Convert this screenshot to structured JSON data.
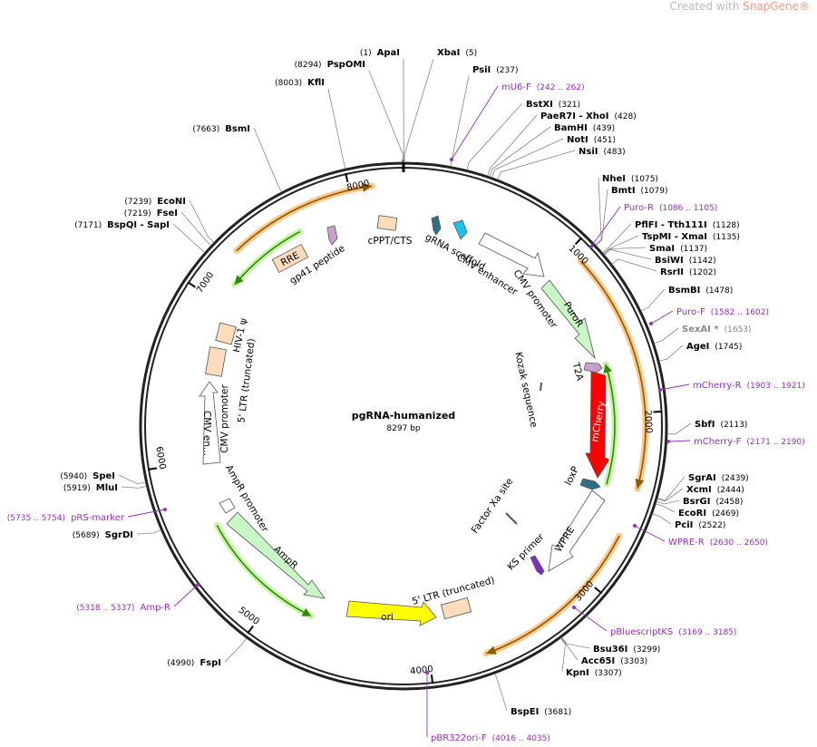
{
  "watermark": {
    "prefix": "Created with ",
    "brand": "SnapGene®"
  },
  "map": {
    "name": "pgRNA-humanized",
    "length": {
      "value": 8297,
      "label": "8297 bp"
    }
  },
  "ticks": [
    1000,
    2000,
    3000,
    4000,
    5000,
    6000,
    7000,
    8000
  ],
  "enzymes": [
    {
      "name": "ApaI",
      "position": {
        "value": 1,
        "label": "(1)"
      }
    },
    {
      "name": "XbaI",
      "position": {
        "value": 5,
        "label": "(5)"
      }
    },
    {
      "name": "PspOMI",
      "position": {
        "value": 8294,
        "label": "(8294)"
      }
    },
    {
      "name": "PsiI",
      "position": {
        "value": 237,
        "label": "(237)"
      }
    },
    {
      "name": "KflI",
      "position": {
        "value": 8003,
        "label": "(8003)"
      }
    },
    {
      "name": "BstXI",
      "position": {
        "value": 321,
        "label": "(321)"
      }
    },
    {
      "name": "PaeR7I - XhoI",
      "position": {
        "value": 428,
        "label": "(428)"
      }
    },
    {
      "name": "BamHI",
      "position": {
        "value": 439,
        "label": "(439)"
      }
    },
    {
      "name": "NotI",
      "position": {
        "value": 451,
        "label": "(451)"
      }
    },
    {
      "name": "NsiI",
      "position": {
        "value": 483,
        "label": "(483)"
      }
    },
    {
      "name": "BsmI",
      "position": {
        "value": 7663,
        "label": "(7663)"
      }
    },
    {
      "name": "NheI",
      "position": {
        "value": 1075,
        "label": "(1075)"
      }
    },
    {
      "name": "BmtI",
      "position": {
        "value": 1079,
        "label": "(1079)"
      }
    },
    {
      "name": "EcoNI",
      "position": {
        "value": 7239,
        "label": "(7239)"
      }
    },
    {
      "name": "FseI",
      "position": {
        "value": 7219,
        "label": "(7219)"
      }
    },
    {
      "name": "BspQI - SapI",
      "position": {
        "value": 7171,
        "label": "(7171)"
      }
    },
    {
      "name": "PflFI - Tth111I",
      "position": {
        "value": 1128,
        "label": "(1128)"
      }
    },
    {
      "name": "TspMI - XmaI",
      "position": {
        "value": 1135,
        "label": "(1135)"
      }
    },
    {
      "name": "SmaI",
      "position": {
        "value": 1137,
        "label": "(1137)"
      }
    },
    {
      "name": "BsiWI",
      "position": {
        "value": 1142,
        "label": "(1142)"
      }
    },
    {
      "name": "RsrII",
      "position": {
        "value": 1202,
        "label": "(1202)"
      }
    },
    {
      "name": "BsmBI",
      "position": {
        "value": 1478,
        "label": "(1478)"
      }
    },
    {
      "name": "SexAI *",
      "position": {
        "value": 1653,
        "label": "(1653)"
      }
    },
    {
      "name": "AgeI",
      "position": {
        "value": 1745,
        "label": "(1745)"
      }
    },
    {
      "name": "SbfI",
      "position": {
        "value": 2113,
        "label": "(2113)"
      }
    },
    {
      "name": "SgrAI",
      "position": {
        "value": 2439,
        "label": "(2439)"
      }
    },
    {
      "name": "XcmI",
      "position": {
        "value": 2444,
        "label": "(2444)"
      }
    },
    {
      "name": "BsrGI",
      "position": {
        "value": 2458,
        "label": "(2458)"
      }
    },
    {
      "name": "EcoRI",
      "position": {
        "value": 2469,
        "label": "(2469)"
      }
    },
    {
      "name": "PciI",
      "position": {
        "value": 2522,
        "label": "(2522)"
      }
    },
    {
      "name": "SpeI",
      "position": {
        "value": 5940,
        "label": "(5940)"
      }
    },
    {
      "name": "MluI",
      "position": {
        "value": 5919,
        "label": "(5919)"
      }
    },
    {
      "name": "SgrDI",
      "position": {
        "value": 5689,
        "label": "(5689)"
      }
    },
    {
      "name": "Bsu36I",
      "position": {
        "value": 3299,
        "label": "(3299)"
      }
    },
    {
      "name": "Acc65I",
      "position": {
        "value": 3303,
        "label": "(3303)"
      }
    },
    {
      "name": "KpnI",
      "position": {
        "value": 3307,
        "label": "(3307)"
      }
    },
    {
      "name": "BspEI",
      "position": {
        "value": 3681,
        "label": "(3681)"
      }
    },
    {
      "name": "FspI",
      "position": {
        "value": 4990,
        "label": "(4990)"
      }
    }
  ],
  "primers": [
    {
      "name": "mU6-F",
      "range": "(242 .. 262)"
    },
    {
      "name": "Puro-R",
      "range": "(1086 .. 1105)"
    },
    {
      "name": "Puro-F",
      "range": "(1582 .. 1602)"
    },
    {
      "name": "mCherry-R",
      "range": "(1903 .. 1921)"
    },
    {
      "name": "mCherry-F",
      "range": "(2171 .. 2190)"
    },
    {
      "name": "WPRE-R",
      "range": "(2630 .. 2650)"
    },
    {
      "name": "pBluescriptKS",
      "range": "(3169 .. 3185)"
    },
    {
      "name": "pBR322ori-F",
      "range": "(4016 .. 4035)"
    },
    {
      "name": "pRS-marker",
      "range": "(5735 .. 5754)"
    },
    {
      "name": "Amp-R",
      "range": "(5318 .. 5337)"
    }
  ],
  "features": [
    "RRE",
    "gp41 peptide",
    "cPPT/CTS",
    "gRNA scaffold",
    "CMV enhancer",
    "CMV promoter",
    "PuroR",
    "T2A",
    "Kozak sequence",
    "mCherry",
    "loxP",
    "WPRE",
    "KS primer",
    "Factor Xa site",
    "5' LTR (truncated)",
    "ori",
    "AmpR",
    "AmpR promoter",
    "CMV en...",
    "CMV promoter",
    "5' LTR (truncated)",
    "HIV-1 ψ"
  ]
}
